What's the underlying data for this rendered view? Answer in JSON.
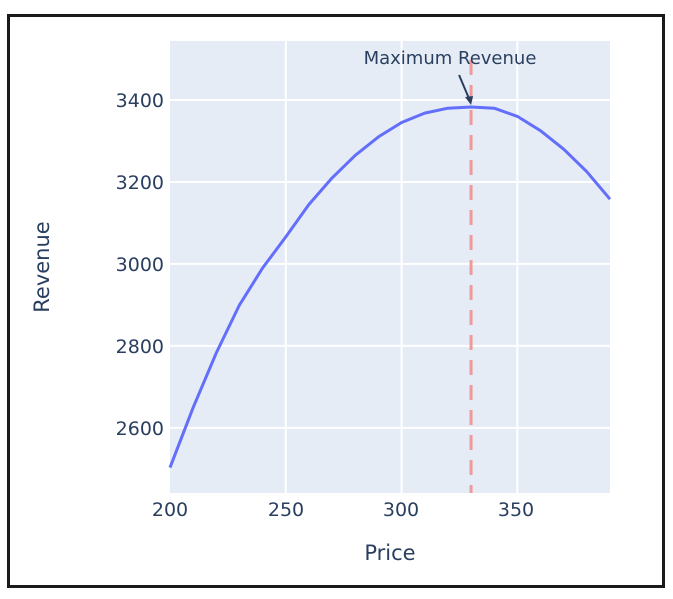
{
  "chart_data": {
    "type": "line",
    "title": "",
    "xlabel": "Price",
    "ylabel": "Revenue",
    "x": [
      200,
      210,
      220,
      230,
      240,
      250,
      260,
      270,
      280,
      290,
      300,
      310,
      320,
      330,
      340,
      350,
      360,
      370,
      380,
      390
    ],
    "series": [
      {
        "name": "Revenue",
        "color": "#636efa",
        "values": [
          2503,
          2650,
          2783,
          2900,
          2990,
          3066,
          3145,
          3210,
          3265,
          3310,
          3345,
          3368,
          3380,
          3383,
          3380,
          3360,
          3325,
          3280,
          3225,
          3158
        ]
      }
    ],
    "xlim": [
      200,
      390
    ],
    "ylim": [
      2441,
      3544
    ],
    "xticks": [
      200,
      250,
      300,
      350
    ],
    "yticks": [
      2600,
      2800,
      3000,
      3200,
      3400
    ],
    "grid": true,
    "legend": "none",
    "vline": {
      "x": 330,
      "color": "#ef9a9a",
      "style": "dashed"
    },
    "annotations": [
      {
        "text": "Maximum Revenue",
        "x": 330,
        "y": 3383,
        "arrow": true
      }
    ],
    "plot_bg": "#e5ecf6"
  },
  "labels": {
    "xaxis_title": "Price",
    "yaxis_title": "Revenue",
    "annotation": "Maximum Revenue",
    "xtick_0": "200",
    "xtick_1": "250",
    "xtick_2": "300",
    "xtick_3": "350",
    "ytick_0": "2600",
    "ytick_1": "2800",
    "ytick_2": "3000",
    "ytick_3": "3200",
    "ytick_4": "3400"
  }
}
